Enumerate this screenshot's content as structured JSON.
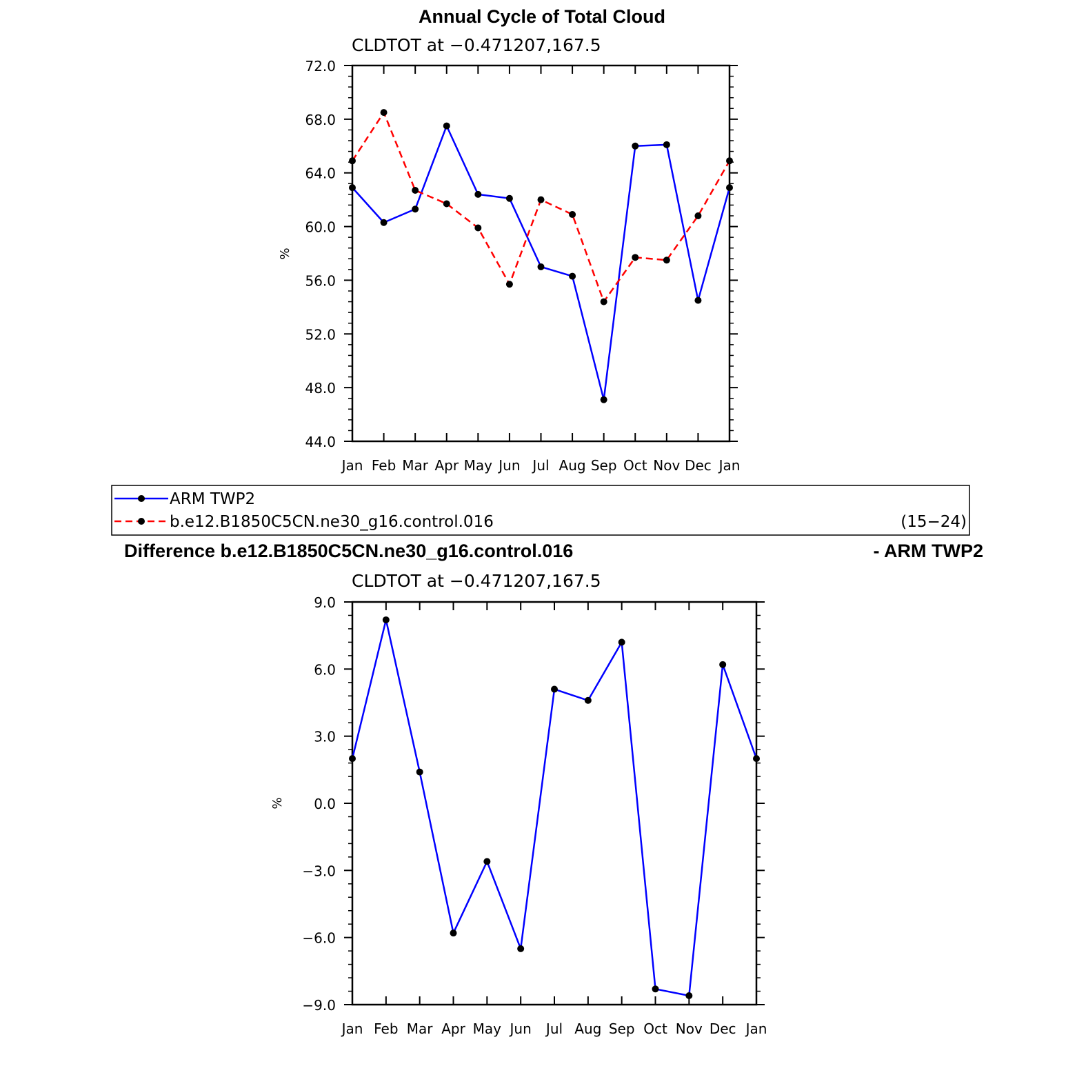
{
  "colors": {
    "obs": "#0000ff",
    "model": "#ff0000",
    "marker": "#000000",
    "axis": "#000000"
  },
  "legend": {
    "items": [
      {
        "label": "ARM TWP2",
        "color": "#0000ff",
        "dash": "solid",
        "marker": "dot"
      },
      {
        "label": "b.e12.B1850C5CN.ne30_g16.control.016",
        "color": "#ff0000",
        "dash": "dashed",
        "marker": "dot"
      }
    ],
    "years": "(15−24)"
  },
  "chart_data": [
    {
      "type": "line",
      "title": "Annual Cycle of Total Cloud",
      "subtitle": "CLDTOT at −0.471207,167.5",
      "ylabel": "%",
      "xlabel": "",
      "categories": [
        "Jan",
        "Feb",
        "Mar",
        "Apr",
        "May",
        "Jun",
        "Jul",
        "Aug",
        "Sep",
        "Oct",
        "Nov",
        "Dec",
        "Jan"
      ],
      "ylim": [
        44.0,
        72.0
      ],
      "yticks": [
        44.0,
        48.0,
        52.0,
        56.0,
        60.0,
        64.0,
        68.0,
        72.0
      ],
      "ytick_labels": [
        "44.0",
        "48.0",
        "52.0",
        "56.0",
        "60.0",
        "64.0",
        "68.0",
        "72.0"
      ],
      "grid": false,
      "series": [
        {
          "name": "ARM TWP2",
          "values": [
            62.9,
            60.3,
            61.3,
            67.5,
            62.4,
            62.1,
            57.0,
            56.3,
            47.1,
            66.0,
            66.1,
            54.5,
            62.9
          ]
        },
        {
          "name": "b.e12.B1850C5CN.ne30_g16.control.016",
          "values": [
            64.9,
            68.5,
            62.7,
            61.7,
            59.9,
            55.7,
            62.0,
            60.9,
            54.4,
            57.7,
            57.5,
            60.8,
            64.9
          ]
        }
      ]
    },
    {
      "type": "line",
      "title_left": "Difference b.e12.B1850C5CN.ne30_g16.control.016",
      "title_right": "- ARM TWP2",
      "subtitle": "CLDTOT at −0.471207,167.5",
      "ylabel": "%",
      "xlabel": "",
      "categories": [
        "Jan",
        "Feb",
        "Mar",
        "Apr",
        "May",
        "Jun",
        "Jul",
        "Aug",
        "Sep",
        "Oct",
        "Nov",
        "Dec",
        "Jan"
      ],
      "ylim": [
        -9.0,
        9.0
      ],
      "yticks": [
        -9.0,
        -6.0,
        -3.0,
        0.0,
        3.0,
        6.0,
        9.0
      ],
      "ytick_labels": [
        "−9.0",
        "−6.0",
        "−3.0",
        "0.0",
        "3.0",
        "6.0",
        "9.0"
      ],
      "grid": false,
      "series": [
        {
          "values": [
            2.0,
            8.2,
            1.4,
            -5.8,
            -2.6,
            -6.5,
            5.1,
            4.6,
            7.2,
            -8.3,
            -8.6,
            6.2,
            2.0
          ]
        }
      ]
    }
  ]
}
